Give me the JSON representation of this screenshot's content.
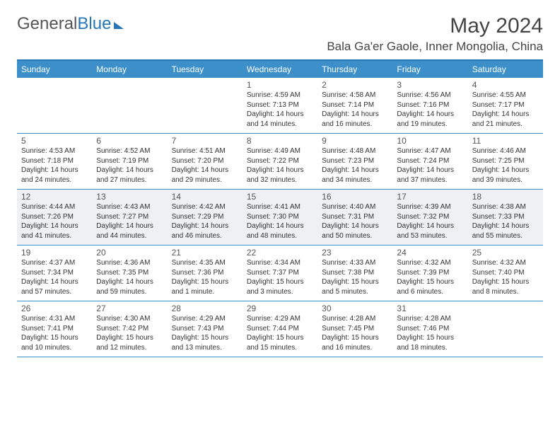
{
  "logo": {
    "part1": "General",
    "part2": "Blue"
  },
  "title": "May 2024",
  "location": "Bala Ga'er Gaole, Inner Mongolia, China",
  "weekdays": [
    "Sunday",
    "Monday",
    "Tuesday",
    "Wednesday",
    "Thursday",
    "Friday",
    "Saturday"
  ],
  "colors": {
    "accent": "#3d8fc9",
    "border": "#2676b8",
    "shaded": "#eef0f2"
  },
  "weeks": [
    {
      "shaded": false,
      "days": [
        {
          "n": "",
          "sr": "",
          "ss": "",
          "dl": ""
        },
        {
          "n": "",
          "sr": "",
          "ss": "",
          "dl": ""
        },
        {
          "n": "",
          "sr": "",
          "ss": "",
          "dl": ""
        },
        {
          "n": "1",
          "sr": "Sunrise: 4:59 AM",
          "ss": "Sunset: 7:13 PM",
          "dl": "Daylight: 14 hours and 14 minutes."
        },
        {
          "n": "2",
          "sr": "Sunrise: 4:58 AM",
          "ss": "Sunset: 7:14 PM",
          "dl": "Daylight: 14 hours and 16 minutes."
        },
        {
          "n": "3",
          "sr": "Sunrise: 4:56 AM",
          "ss": "Sunset: 7:16 PM",
          "dl": "Daylight: 14 hours and 19 minutes."
        },
        {
          "n": "4",
          "sr": "Sunrise: 4:55 AM",
          "ss": "Sunset: 7:17 PM",
          "dl": "Daylight: 14 hours and 21 minutes."
        }
      ]
    },
    {
      "shaded": false,
      "days": [
        {
          "n": "5",
          "sr": "Sunrise: 4:53 AM",
          "ss": "Sunset: 7:18 PM",
          "dl": "Daylight: 14 hours and 24 minutes."
        },
        {
          "n": "6",
          "sr": "Sunrise: 4:52 AM",
          "ss": "Sunset: 7:19 PM",
          "dl": "Daylight: 14 hours and 27 minutes."
        },
        {
          "n": "7",
          "sr": "Sunrise: 4:51 AM",
          "ss": "Sunset: 7:20 PM",
          "dl": "Daylight: 14 hours and 29 minutes."
        },
        {
          "n": "8",
          "sr": "Sunrise: 4:49 AM",
          "ss": "Sunset: 7:22 PM",
          "dl": "Daylight: 14 hours and 32 minutes."
        },
        {
          "n": "9",
          "sr": "Sunrise: 4:48 AM",
          "ss": "Sunset: 7:23 PM",
          "dl": "Daylight: 14 hours and 34 minutes."
        },
        {
          "n": "10",
          "sr": "Sunrise: 4:47 AM",
          "ss": "Sunset: 7:24 PM",
          "dl": "Daylight: 14 hours and 37 minutes."
        },
        {
          "n": "11",
          "sr": "Sunrise: 4:46 AM",
          "ss": "Sunset: 7:25 PM",
          "dl": "Daylight: 14 hours and 39 minutes."
        }
      ]
    },
    {
      "shaded": true,
      "days": [
        {
          "n": "12",
          "sr": "Sunrise: 4:44 AM",
          "ss": "Sunset: 7:26 PM",
          "dl": "Daylight: 14 hours and 41 minutes."
        },
        {
          "n": "13",
          "sr": "Sunrise: 4:43 AM",
          "ss": "Sunset: 7:27 PM",
          "dl": "Daylight: 14 hours and 44 minutes."
        },
        {
          "n": "14",
          "sr": "Sunrise: 4:42 AM",
          "ss": "Sunset: 7:29 PM",
          "dl": "Daylight: 14 hours and 46 minutes."
        },
        {
          "n": "15",
          "sr": "Sunrise: 4:41 AM",
          "ss": "Sunset: 7:30 PM",
          "dl": "Daylight: 14 hours and 48 minutes."
        },
        {
          "n": "16",
          "sr": "Sunrise: 4:40 AM",
          "ss": "Sunset: 7:31 PM",
          "dl": "Daylight: 14 hours and 50 minutes."
        },
        {
          "n": "17",
          "sr": "Sunrise: 4:39 AM",
          "ss": "Sunset: 7:32 PM",
          "dl": "Daylight: 14 hours and 53 minutes."
        },
        {
          "n": "18",
          "sr": "Sunrise: 4:38 AM",
          "ss": "Sunset: 7:33 PM",
          "dl": "Daylight: 14 hours and 55 minutes."
        }
      ]
    },
    {
      "shaded": false,
      "days": [
        {
          "n": "19",
          "sr": "Sunrise: 4:37 AM",
          "ss": "Sunset: 7:34 PM",
          "dl": "Daylight: 14 hours and 57 minutes."
        },
        {
          "n": "20",
          "sr": "Sunrise: 4:36 AM",
          "ss": "Sunset: 7:35 PM",
          "dl": "Daylight: 14 hours and 59 minutes."
        },
        {
          "n": "21",
          "sr": "Sunrise: 4:35 AM",
          "ss": "Sunset: 7:36 PM",
          "dl": "Daylight: 15 hours and 1 minute."
        },
        {
          "n": "22",
          "sr": "Sunrise: 4:34 AM",
          "ss": "Sunset: 7:37 PM",
          "dl": "Daylight: 15 hours and 3 minutes."
        },
        {
          "n": "23",
          "sr": "Sunrise: 4:33 AM",
          "ss": "Sunset: 7:38 PM",
          "dl": "Daylight: 15 hours and 5 minutes."
        },
        {
          "n": "24",
          "sr": "Sunrise: 4:32 AM",
          "ss": "Sunset: 7:39 PM",
          "dl": "Daylight: 15 hours and 6 minutes."
        },
        {
          "n": "25",
          "sr": "Sunrise: 4:32 AM",
          "ss": "Sunset: 7:40 PM",
          "dl": "Daylight: 15 hours and 8 minutes."
        }
      ]
    },
    {
      "shaded": false,
      "days": [
        {
          "n": "26",
          "sr": "Sunrise: 4:31 AM",
          "ss": "Sunset: 7:41 PM",
          "dl": "Daylight: 15 hours and 10 minutes."
        },
        {
          "n": "27",
          "sr": "Sunrise: 4:30 AM",
          "ss": "Sunset: 7:42 PM",
          "dl": "Daylight: 15 hours and 12 minutes."
        },
        {
          "n": "28",
          "sr": "Sunrise: 4:29 AM",
          "ss": "Sunset: 7:43 PM",
          "dl": "Daylight: 15 hours and 13 minutes."
        },
        {
          "n": "29",
          "sr": "Sunrise: 4:29 AM",
          "ss": "Sunset: 7:44 PM",
          "dl": "Daylight: 15 hours and 15 minutes."
        },
        {
          "n": "30",
          "sr": "Sunrise: 4:28 AM",
          "ss": "Sunset: 7:45 PM",
          "dl": "Daylight: 15 hours and 16 minutes."
        },
        {
          "n": "31",
          "sr": "Sunrise: 4:28 AM",
          "ss": "Sunset: 7:46 PM",
          "dl": "Daylight: 15 hours and 18 minutes."
        },
        {
          "n": "",
          "sr": "",
          "ss": "",
          "dl": ""
        }
      ]
    }
  ]
}
